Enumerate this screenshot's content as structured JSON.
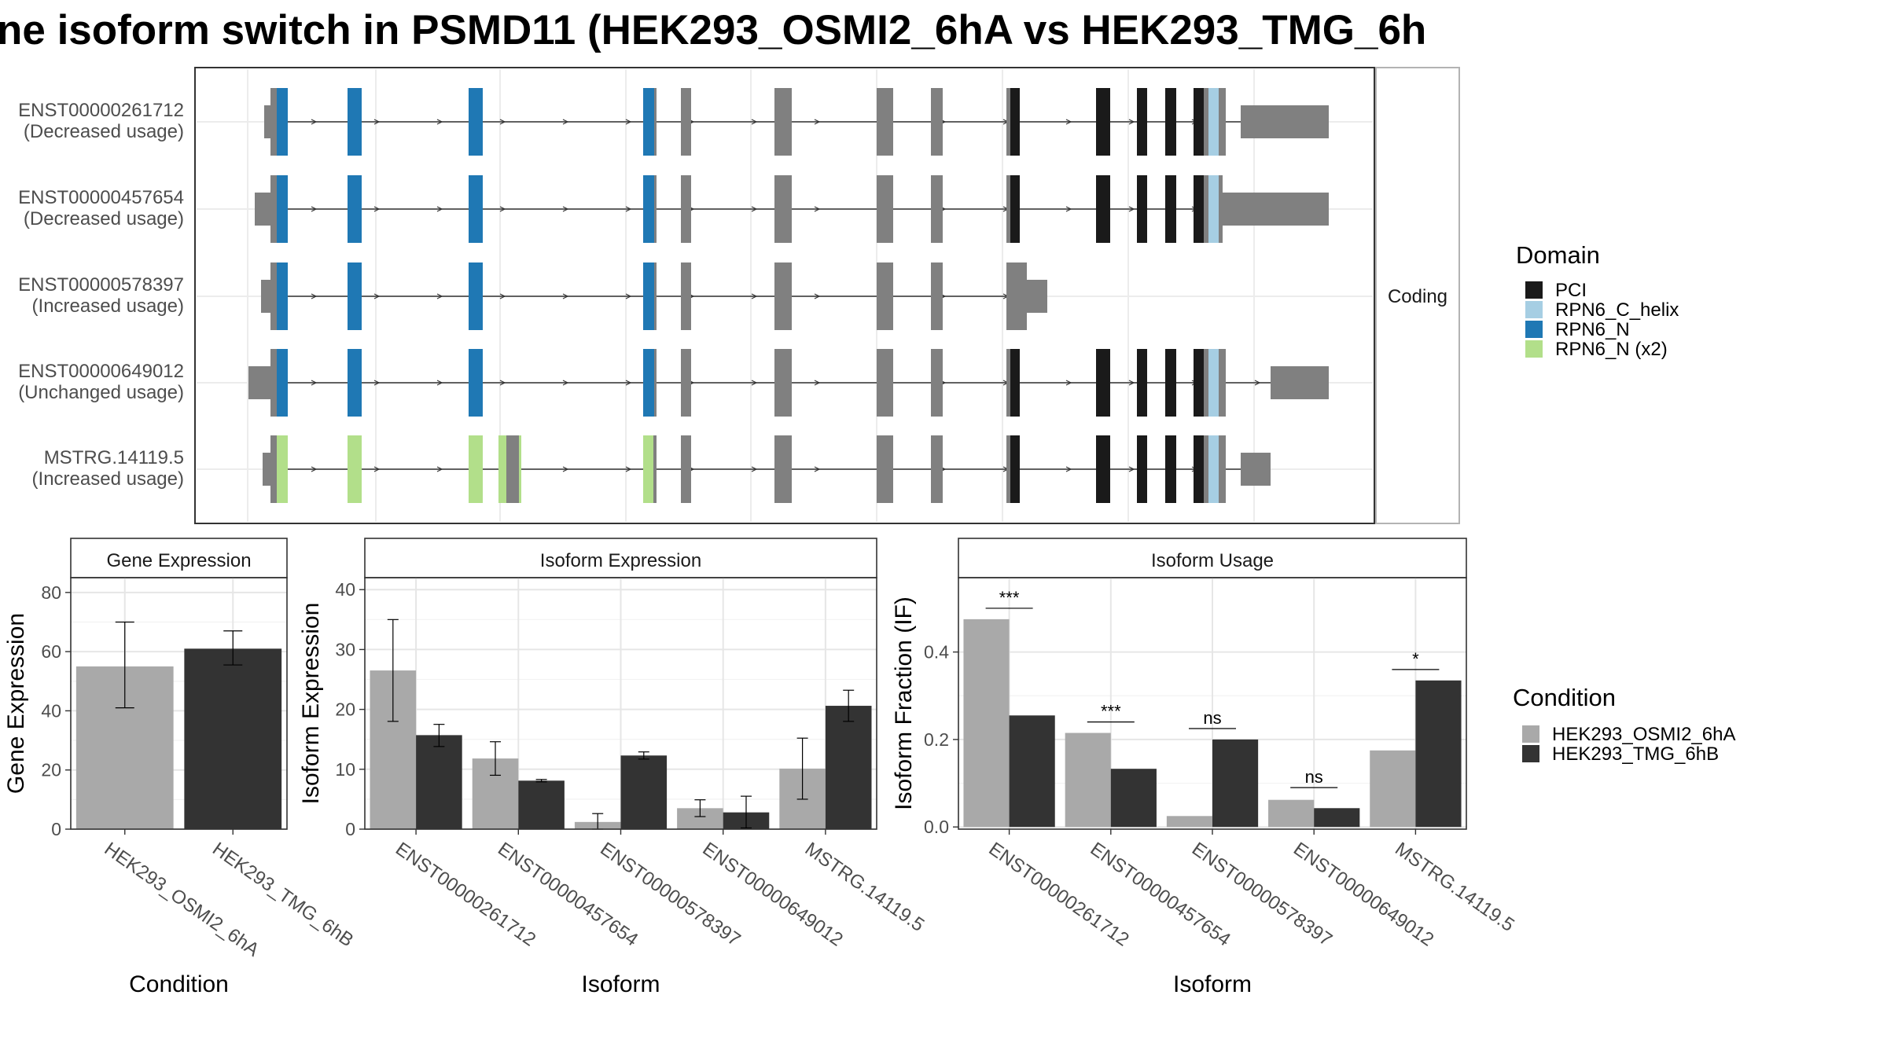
{
  "title": "ne isoform switch in PSMD11 (HEK293_OSMI2_6hA vs HEK293_TMG_6h",
  "colors": {
    "PCI": "#1a1a1a",
    "RPN6_C_helix": "#a6cee3",
    "RPN6_N": "#1f78b4",
    "RPN6_N (x2)": "#b2df8a",
    "noncoding": "#808080",
    "cond_a": "#a9a9a9",
    "cond_b": "#333333"
  },
  "isoform_plot": {
    "strip_label": "Coding",
    "transcripts": [
      {
        "id": "ENST00000261712",
        "usage": "(Decreased usage)"
      },
      {
        "id": "ENST00000457654",
        "usage": "(Decreased usage)"
      },
      {
        "id": "ENST00000578397",
        "usage": "(Increased usage)"
      },
      {
        "id": "ENST00000649012",
        "usage": "(Unchanged usage)"
      },
      {
        "id": "MSTRG.14119.5",
        "usage": "(Increased usage)"
      }
    ]
  },
  "domain_legend": {
    "title": "Domain",
    "items": [
      {
        "label": "PCI",
        "color": "#1a1a1a"
      },
      {
        "label": "RPN6_C_helix",
        "color": "#a6cee3"
      },
      {
        "label": "RPN6_N",
        "color": "#1f78b4"
      },
      {
        "label": "RPN6_N (x2)",
        "color": "#b2df8a"
      }
    ]
  },
  "condition_legend": {
    "title": "Condition",
    "items": [
      {
        "label": "HEK293_OSMI2_6hA",
        "color": "#a9a9a9"
      },
      {
        "label": "HEK293_TMG_6hB",
        "color": "#333333"
      }
    ]
  },
  "chart_data": [
    {
      "type": "bar",
      "title": "Gene Expression",
      "xlabel": "Condition",
      "ylabel": "Gene Expression",
      "ylim": [
        0,
        85
      ],
      "yticks": [
        0,
        20,
        40,
        60,
        80
      ],
      "categories": [
        "HEK293_OSMI2_6hA",
        "HEK293_TMG_6hB"
      ],
      "values": [
        55,
        61
      ],
      "errors": [
        [
          41,
          70
        ],
        [
          55.5,
          67
        ]
      ]
    },
    {
      "type": "bar",
      "title": "Isoform Expression",
      "xlabel": "Isoform",
      "ylabel": "Isoform Expression",
      "ylim": [
        0,
        42
      ],
      "yticks": [
        0,
        10,
        20,
        30,
        40
      ],
      "categories": [
        "ENST00000261712",
        "ENST00000457654",
        "ENST00000578397",
        "ENST00000649012",
        "MSTRG.14119.5"
      ],
      "series": [
        {
          "name": "HEK293_OSMI2_6hA",
          "values": [
            26.5,
            11.8,
            1.2,
            3.5,
            10.1
          ],
          "errors": [
            [
              18,
              35
            ],
            [
              9,
              14.6
            ],
            [
              0,
              2.6
            ],
            [
              2.1,
              4.9
            ],
            [
              5,
              15.2
            ]
          ]
        },
        {
          "name": "HEK293_TMG_6hB",
          "values": [
            15.7,
            8.1,
            12.3,
            2.8,
            20.6
          ],
          "errors": [
            [
              13.8,
              17.5
            ],
            [
              7.9,
              8.3
            ],
            [
              11.7,
              12.9
            ],
            [
              0.2,
              5.5
            ],
            [
              18,
              23.2
            ]
          ]
        }
      ]
    },
    {
      "type": "bar",
      "title": "Isoform Usage",
      "xlabel": "Isoform",
      "ylabel": "Isoform Fraction (IF)",
      "ylim": [
        -0.005,
        0.57
      ],
      "yticks": [
        0.0,
        0.2,
        0.4
      ],
      "ytick_labels": [
        "0.0",
        "0.2",
        "0.4"
      ],
      "categories": [
        "ENST00000261712",
        "ENST00000457654",
        "ENST00000578397",
        "ENST00000649012",
        "MSTRG.14119.5"
      ],
      "series": [
        {
          "name": "HEK293_OSMI2_6hA",
          "values": [
            0.475,
            0.215,
            0.025,
            0.062,
            0.175
          ]
        },
        {
          "name": "HEK293_TMG_6hB",
          "values": [
            0.255,
            0.133,
            0.2,
            0.043,
            0.335
          ]
        }
      ],
      "significance": [
        "***",
        "***",
        "ns",
        "ns",
        "*"
      ],
      "significance_y": [
        0.5,
        0.24,
        0.225,
        0.09,
        0.36
      ]
    }
  ]
}
